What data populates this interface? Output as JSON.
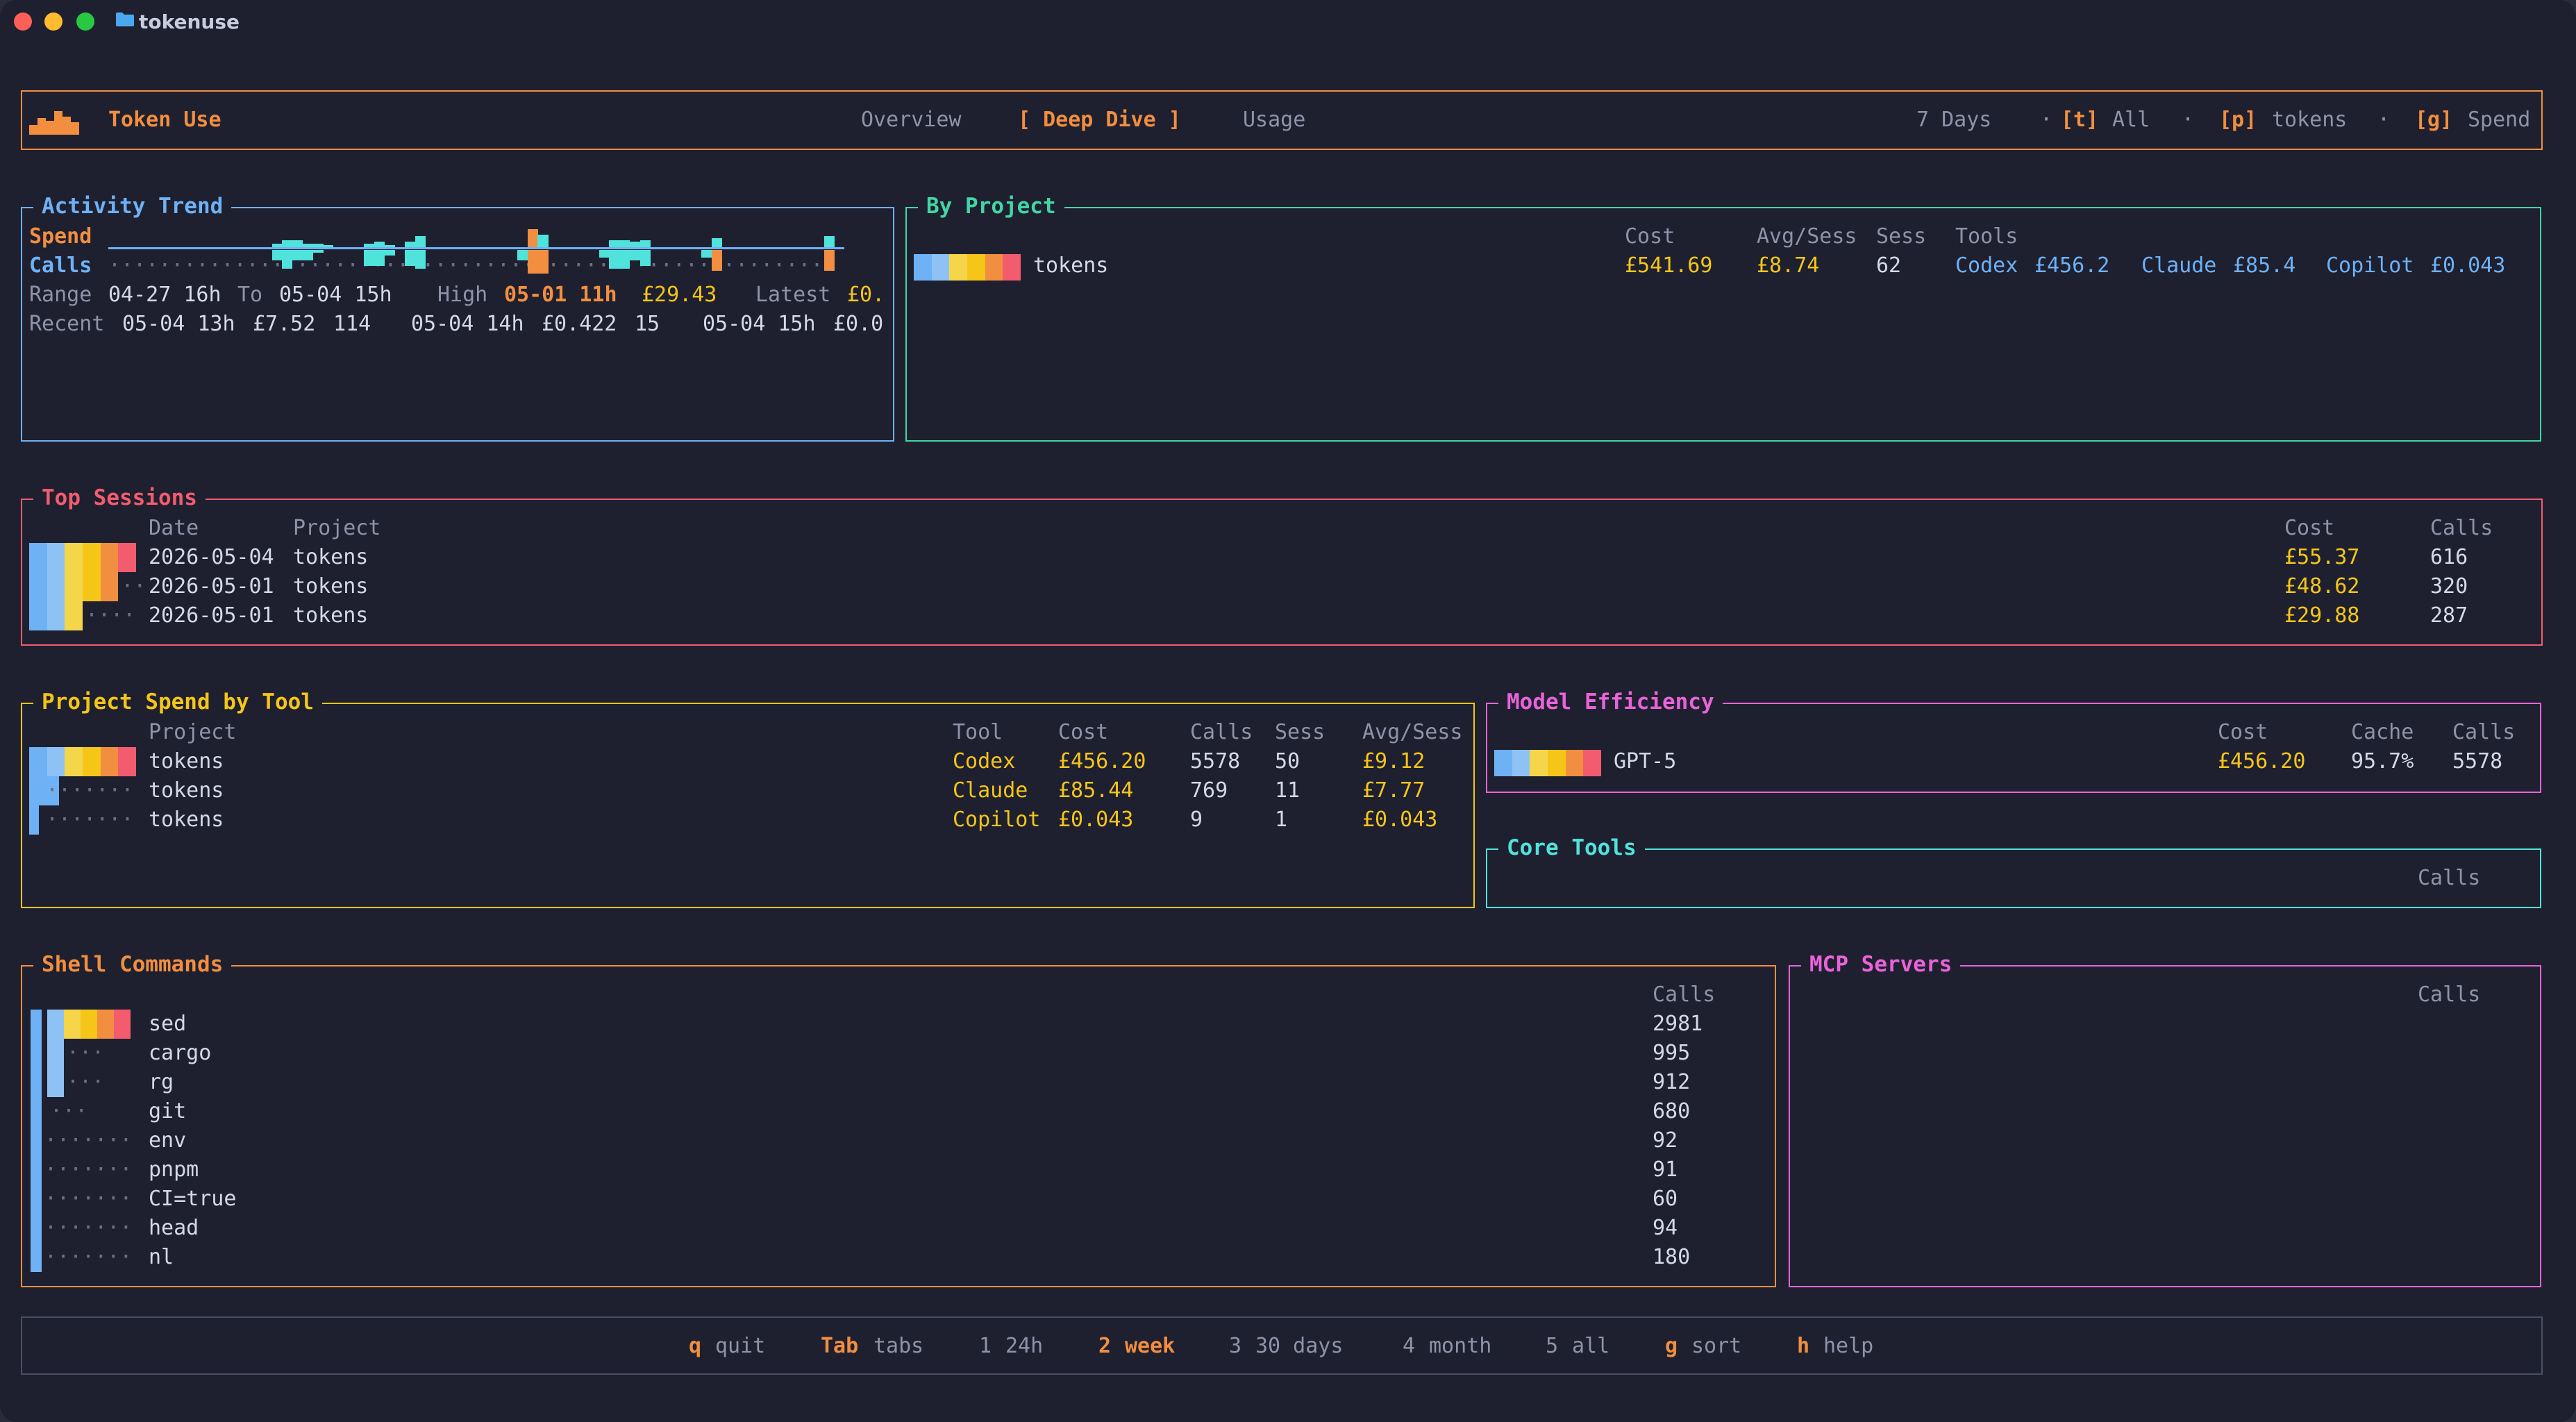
{
  "window": {
    "title": "tokenuse"
  },
  "header": {
    "app_name": "Token Use",
    "tabs": [
      {
        "label": "Overview"
      },
      {
        "label": "[ Deep Dive ]"
      },
      {
        "label": "Usage"
      }
    ],
    "range": "7 Days",
    "sep": "·",
    "filters": [
      {
        "key": "[t]",
        "label": "All"
      },
      {
        "key": "[p]",
        "label": "tokens"
      },
      {
        "key": "[g]",
        "label": "Spend"
      }
    ]
  },
  "activity": {
    "title": "Activity Trend",
    "spend_label": "Spend",
    "calls_label": "Calls",
    "range_label": "Range",
    "range_from": "04-27 16h",
    "to_label": "To",
    "range_to": "05-04 15h",
    "high_label": "High",
    "high_time": "05-01 11h",
    "high_value": "£29.43",
    "latest_label": "Latest",
    "latest_value": "£0.",
    "recent_label": "Recent",
    "recent": [
      {
        "time": "05-04 13h",
        "cost": "£7.52",
        "calls": "114"
      },
      {
        "time": "05-04 14h",
        "cost": "£0.422",
        "calls": "15"
      },
      {
        "time": "05-04 15h",
        "cost": "£0.0",
        "calls": ""
      }
    ],
    "spend_bars": [
      0,
      0,
      0,
      0,
      0,
      0,
      0,
      0,
      0,
      0,
      0,
      0,
      0,
      0,
      0,
      0,
      0.2,
      0.4,
      0.4,
      0.2,
      0.2,
      0.1,
      0,
      0,
      0,
      0.2,
      0.3,
      0.1,
      0,
      0.3,
      0.6,
      0,
      0,
      0,
      0,
      0,
      0,
      0,
      0,
      0,
      0,
      1,
      0.7,
      0,
      0,
      0,
      0,
      0,
      0,
      0.4,
      0.4,
      0.3,
      0.4,
      0,
      0,
      0,
      0,
      0,
      0,
      0.5,
      0,
      0,
      0,
      0,
      0,
      0,
      0,
      0,
      0,
      0,
      0.6,
      0
    ],
    "calls_bars": [
      0,
      0,
      0,
      0,
      0,
      0,
      0,
      0,
      0,
      0,
      0,
      0,
      0,
      0,
      0,
      0,
      0.4,
      0.7,
      0.4,
      0.4,
      0.1,
      0,
      0,
      0,
      0,
      0.6,
      0.6,
      0.2,
      0,
      0.6,
      0.7,
      0,
      0,
      0,
      0,
      0,
      0,
      0,
      0,
      0,
      0.4,
      0.9,
      0.9,
      0,
      0,
      0,
      0,
      0,
      0.3,
      0.7,
      0.7,
      0.4,
      0.6,
      0,
      0,
      0,
      0,
      0,
      0.3,
      0.8,
      0,
      0,
      0,
      0,
      0,
      0,
      0,
      0,
      0,
      0,
      0.8,
      0
    ]
  },
  "by_project": {
    "title": "By Project",
    "headers": {
      "cost": "Cost",
      "avg": "Avg/Sess",
      "sess": "Sess",
      "tools": "Tools"
    },
    "rows": [
      {
        "name": "tokens",
        "cost": "£541.69",
        "avg": "£8.74",
        "sess": "62",
        "tools": [
          {
            "name": "Codex",
            "value": "£456.2"
          },
          {
            "name": "Claude",
            "value": "£85.4"
          },
          {
            "name": "Copilot",
            "value": "£0.043"
          }
        ]
      }
    ]
  },
  "top_sessions": {
    "title": "Top Sessions",
    "headers": {
      "date": "Date",
      "project": "Project",
      "cost": "Cost",
      "calls": "Calls"
    },
    "rows": [
      {
        "date": "2026-05-04",
        "project": "tokens",
        "cost": "£55.37",
        "calls": "616",
        "level": 1.0
      },
      {
        "date": "2026-05-01",
        "project": "tokens",
        "cost": "£48.62",
        "calls": "320",
        "level": 0.88
      },
      {
        "date": "2026-05-01",
        "project": "tokens",
        "cost": "£29.88",
        "calls": "287",
        "level": 0.54
      }
    ]
  },
  "spend_by_tool": {
    "title": "Project Spend by Tool",
    "headers": {
      "project": "Project",
      "tool": "Tool",
      "cost": "Cost",
      "calls": "Calls",
      "sess": "Sess",
      "avg": "Avg/Sess"
    },
    "rows": [
      {
        "project": "tokens",
        "tool": "Codex",
        "cost": "£456.20",
        "calls": "5578",
        "sess": "50",
        "avg": "£9.12",
        "level": 1.0
      },
      {
        "project": "tokens",
        "tool": "Claude",
        "cost": "£85.44",
        "calls": "769",
        "sess": "11",
        "avg": "£7.77",
        "level": 0.19
      },
      {
        "project": "tokens",
        "tool": "Copilot",
        "cost": "£0.043",
        "calls": "9",
        "sess": "1",
        "avg": "£0.043",
        "level": 0.0
      }
    ]
  },
  "model_efficiency": {
    "title": "Model Efficiency",
    "headers": {
      "cost": "Cost",
      "cache": "Cache",
      "calls": "Calls"
    },
    "rows": [
      {
        "model": "GPT-5",
        "cost": "£456.20",
        "cache": "95.7%",
        "calls": "5578"
      }
    ]
  },
  "core_tools": {
    "title": "Core Tools",
    "headers": {
      "calls": "Calls"
    }
  },
  "shell_commands": {
    "title": "Shell Commands",
    "headers": {
      "calls": "Calls"
    },
    "rows": [
      {
        "name": "sed",
        "calls": "2981",
        "level": 1.0
      },
      {
        "name": "cargo",
        "calls": "995",
        "level": 0.33
      },
      {
        "name": "rg",
        "calls": "912",
        "level": 0.31
      },
      {
        "name": "git",
        "calls": "680",
        "level": 0.23
      },
      {
        "name": "env",
        "calls": "92",
        "level": 0.03
      },
      {
        "name": "pnpm",
        "calls": "91",
        "level": 0.03
      },
      {
        "name": "CI=true",
        "calls": "60",
        "level": 0.02
      },
      {
        "name": "head",
        "calls": "94",
        "level": 0.03
      },
      {
        "name": "nl",
        "calls": "180",
        "level": 0.06
      }
    ]
  },
  "mcp_servers": {
    "title": "MCP Servers",
    "headers": {
      "calls": "Calls"
    }
  },
  "footer": {
    "items": [
      {
        "key": "q",
        "label": "quit"
      },
      {
        "key": "Tab",
        "label": "tabs"
      },
      {
        "key": "1",
        "label": "24h"
      },
      {
        "key": "2",
        "label": "week",
        "active": true
      },
      {
        "key": "3",
        "label": "30 days"
      },
      {
        "key": "4",
        "label": "month"
      },
      {
        "key": "5",
        "label": "all"
      },
      {
        "key": "g",
        "label": "sort"
      },
      {
        "key": "h",
        "label": "help"
      }
    ]
  },
  "colors": {
    "accent": "#f28e3f",
    "money": "#f5c518",
    "blue": "#6eb1f5",
    "cyan": "#4fe3dc",
    "green": "#42d6a4",
    "pink": "#e963d9",
    "red": "#f25c6e"
  }
}
